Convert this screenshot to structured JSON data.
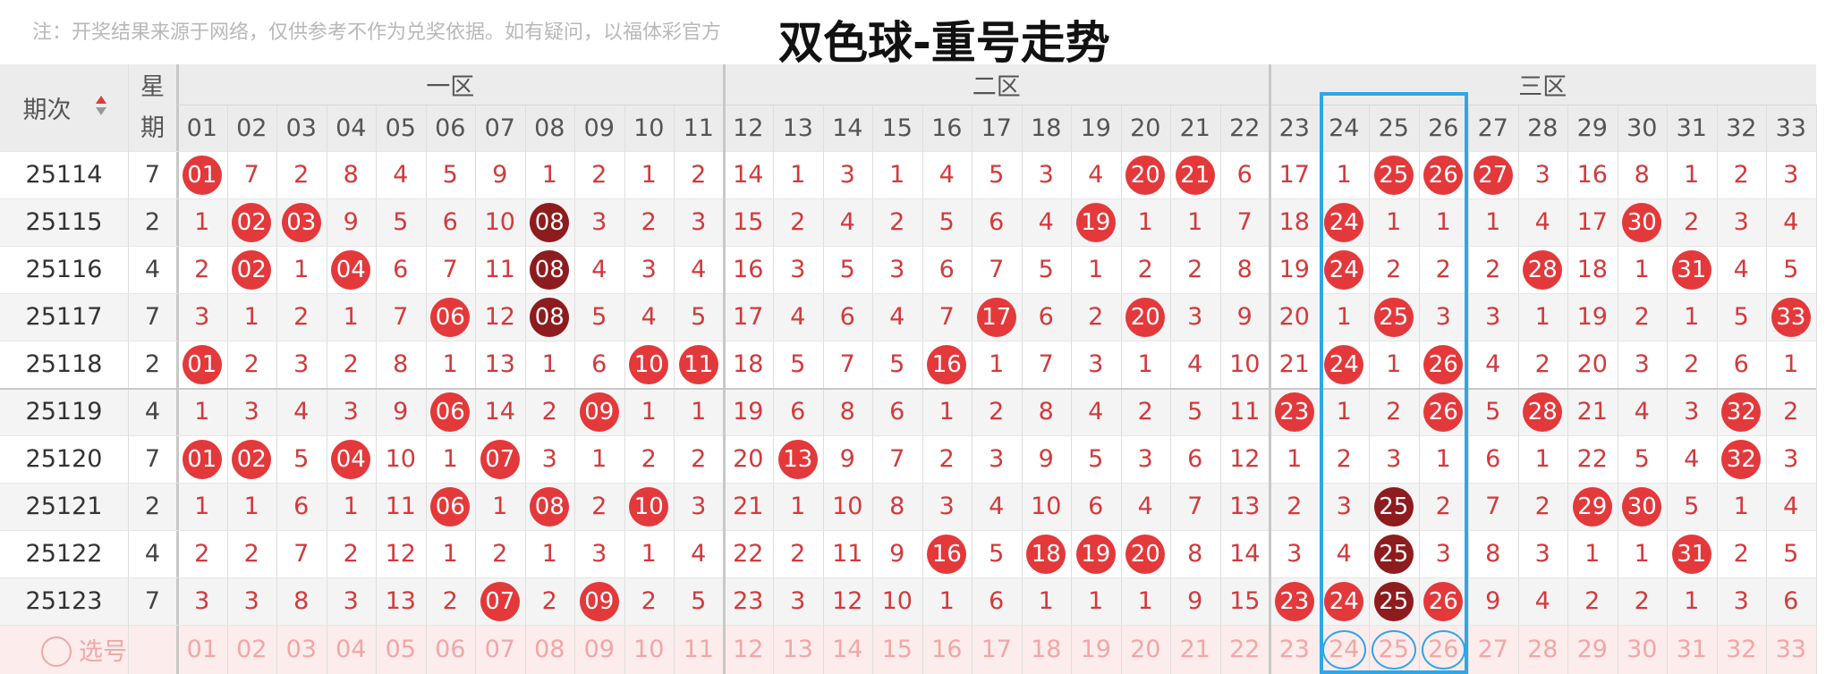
{
  "header": {
    "note": "注：开奖结果来源于网络，仅供参考不作为兑奖依据。如有疑问，以福体彩官方",
    "title": "双色球-重号走势"
  },
  "table": {
    "period_label": "期次",
    "weekday_label": "星期",
    "zones": [
      {
        "label": "一区",
        "numbers": [
          "01",
          "02",
          "03",
          "04",
          "05",
          "06",
          "07",
          "08",
          "09",
          "10",
          "11"
        ]
      },
      {
        "label": "二区",
        "numbers": [
          "12",
          "13",
          "14",
          "15",
          "16",
          "17",
          "18",
          "19",
          "20",
          "21",
          "22"
        ]
      },
      {
        "label": "三区",
        "numbers": [
          "23",
          "24",
          "25",
          "26",
          "27",
          "28",
          "29",
          "30",
          "31",
          "32",
          "33"
        ]
      }
    ],
    "rows": [
      {
        "period": "25114",
        "weekday": "7",
        "cells": [
          "01",
          "7",
          "2",
          "8",
          "4",
          "5",
          "9",
          "1",
          "2",
          "1",
          "2",
          "14",
          "1",
          "3",
          "1",
          "4",
          "5",
          "3",
          "4",
          "20",
          "21",
          "6",
          "17",
          "1",
          "25",
          "26",
          "27",
          "3",
          "16",
          "8",
          "1",
          "2",
          "3"
        ],
        "hit": [
          0,
          19,
          20,
          24,
          25,
          26
        ],
        "repeat": []
      },
      {
        "period": "25115",
        "weekday": "2",
        "cells": [
          "1",
          "02",
          "03",
          "9",
          "5",
          "6",
          "10",
          "08",
          "3",
          "2",
          "3",
          "15",
          "2",
          "4",
          "2",
          "5",
          "6",
          "4",
          "19",
          "1",
          "1",
          "7",
          "18",
          "24",
          "1",
          "1",
          "1",
          "4",
          "17",
          "30",
          "2",
          "3",
          "4"
        ],
        "hit": [
          1,
          2,
          18,
          23,
          29
        ],
        "repeat": [
          7
        ]
      },
      {
        "period": "25116",
        "weekday": "4",
        "cells": [
          "2",
          "02",
          "1",
          "04",
          "6",
          "7",
          "11",
          "08",
          "4",
          "3",
          "4",
          "16",
          "3",
          "5",
          "3",
          "6",
          "7",
          "5",
          "1",
          "2",
          "2",
          "8",
          "19",
          "24",
          "2",
          "2",
          "2",
          "28",
          "18",
          "1",
          "31",
          "4",
          "5"
        ],
        "hit": [
          1,
          3,
          23,
          27,
          30
        ],
        "repeat": [
          7
        ]
      },
      {
        "period": "25117",
        "weekday": "7",
        "cells": [
          "3",
          "1",
          "2",
          "1",
          "7",
          "06",
          "12",
          "08",
          "5",
          "4",
          "5",
          "17",
          "4",
          "6",
          "4",
          "7",
          "17",
          "6",
          "2",
          "20",
          "3",
          "9",
          "20",
          "1",
          "25",
          "3",
          "3",
          "1",
          "19",
          "2",
          "1",
          "5",
          "33"
        ],
        "hit": [
          5,
          16,
          19,
          24,
          32
        ],
        "repeat": [
          7
        ]
      },
      {
        "period": "25118",
        "weekday": "2",
        "cells": [
          "01",
          "2",
          "3",
          "2",
          "8",
          "1",
          "13",
          "1",
          "6",
          "10",
          "11",
          "18",
          "5",
          "7",
          "5",
          "16",
          "1",
          "7",
          "3",
          "1",
          "4",
          "10",
          "21",
          "24",
          "1",
          "26",
          "4",
          "2",
          "20",
          "3",
          "2",
          "6",
          "1"
        ],
        "hit": [
          0,
          9,
          10,
          15,
          23,
          25
        ],
        "repeat": []
      },
      {
        "period": "25119",
        "weekday": "4",
        "cells": [
          "1",
          "3",
          "4",
          "3",
          "9",
          "06",
          "14",
          "2",
          "09",
          "1",
          "1",
          "19",
          "6",
          "8",
          "6",
          "1",
          "2",
          "8",
          "4",
          "2",
          "5",
          "11",
          "23",
          "1",
          "2",
          "26",
          "5",
          "28",
          "21",
          "4",
          "3",
          "32",
          "2"
        ],
        "hit": [
          5,
          8,
          22,
          25,
          27,
          31
        ],
        "repeat": []
      },
      {
        "period": "25120",
        "weekday": "7",
        "cells": [
          "01",
          "02",
          "5",
          "04",
          "10",
          "1",
          "07",
          "3",
          "1",
          "2",
          "2",
          "20",
          "13",
          "9",
          "7",
          "2",
          "3",
          "9",
          "5",
          "3",
          "6",
          "12",
          "1",
          "2",
          "3",
          "1",
          "6",
          "1",
          "22",
          "5",
          "4",
          "32",
          "3"
        ],
        "hit": [
          0,
          1,
          3,
          6,
          12,
          31
        ],
        "repeat": []
      },
      {
        "period": "25121",
        "weekday": "2",
        "cells": [
          "1",
          "1",
          "6",
          "1",
          "11",
          "06",
          "1",
          "08",
          "2",
          "10",
          "3",
          "21",
          "1",
          "10",
          "8",
          "3",
          "4",
          "10",
          "6",
          "4",
          "7",
          "13",
          "2",
          "3",
          "25",
          "2",
          "7",
          "2",
          "29",
          "30",
          "5",
          "1",
          "4"
        ],
        "hit": [
          5,
          7,
          9,
          28,
          29
        ],
        "repeat": [
          24
        ]
      },
      {
        "period": "25122",
        "weekday": "4",
        "cells": [
          "2",
          "2",
          "7",
          "2",
          "12",
          "1",
          "2",
          "1",
          "3",
          "1",
          "4",
          "22",
          "2",
          "11",
          "9",
          "16",
          "5",
          "18",
          "19",
          "20",
          "8",
          "14",
          "3",
          "4",
          "25",
          "3",
          "8",
          "3",
          "1",
          "1",
          "31",
          "2",
          "5"
        ],
        "hit": [
          15,
          17,
          18,
          19,
          30
        ],
        "repeat": [
          24
        ]
      },
      {
        "period": "25123",
        "weekday": "7",
        "cells": [
          "3",
          "3",
          "8",
          "3",
          "13",
          "2",
          "07",
          "2",
          "09",
          "2",
          "5",
          "23",
          "3",
          "12",
          "10",
          "1",
          "6",
          "1",
          "1",
          "1",
          "9",
          "15",
          "23",
          "24",
          "25",
          "26",
          "9",
          "4",
          "2",
          "2",
          "1",
          "3",
          "6"
        ],
        "hit": [
          6,
          8,
          22,
          23,
          25
        ],
        "repeat": [
          24
        ]
      }
    ],
    "pick_label": "选号",
    "pick_numbers": [
      "01",
      "02",
      "03",
      "04",
      "05",
      "06",
      "07",
      "08",
      "09",
      "10",
      "11",
      "12",
      "13",
      "14",
      "15",
      "16",
      "17",
      "18",
      "19",
      "20",
      "21",
      "22",
      "23",
      "24",
      "25",
      "26",
      "27",
      "28",
      "29",
      "30",
      "31",
      "32",
      "33"
    ],
    "highlight_columns": [
      23,
      24,
      25
    ]
  }
}
